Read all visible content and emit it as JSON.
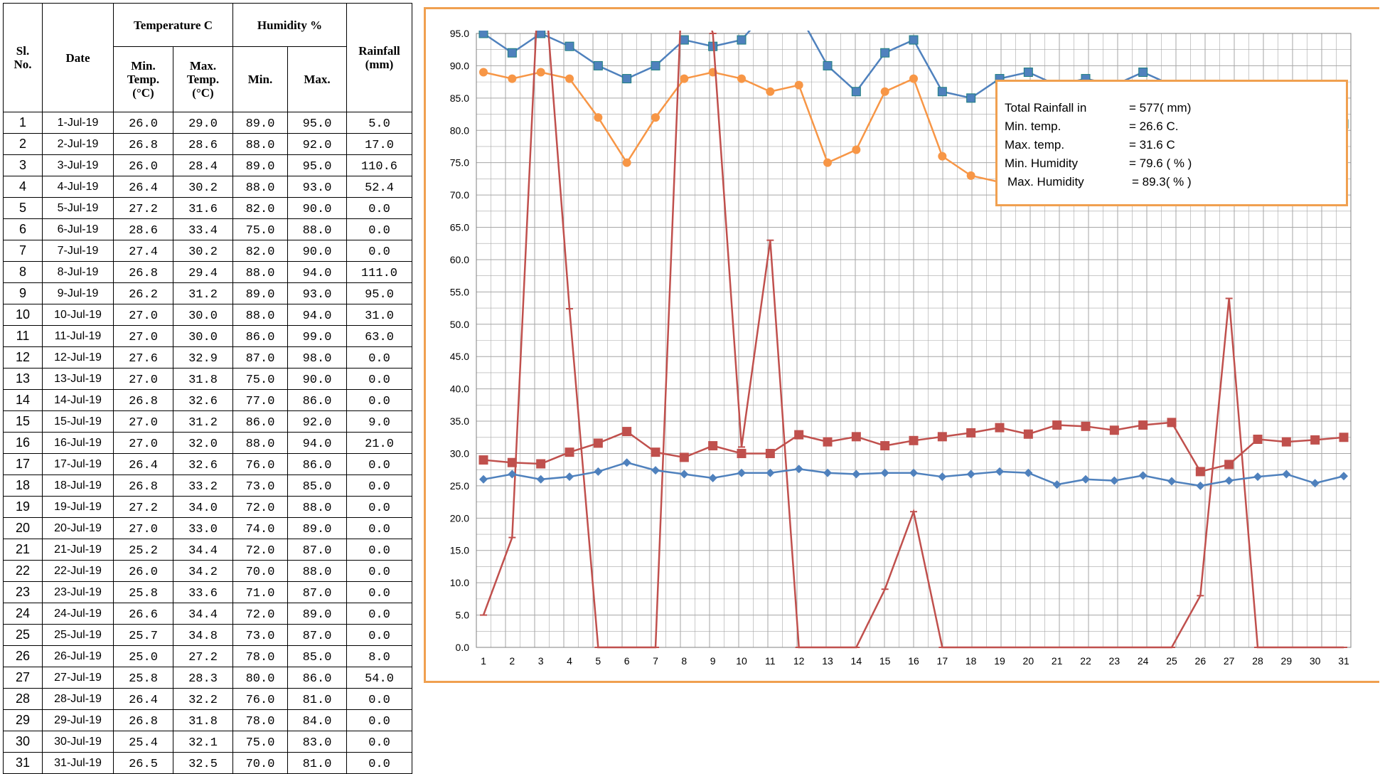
{
  "table": {
    "col_sl": "Sl.\nNo.",
    "col_date": "Date",
    "col_temperature": "Temperature C",
    "col_humidity": "Humidity %",
    "col_rainfall": "Rainfall\n(mm)",
    "col_min_temp": "Min.\nTemp.\n(°C)",
    "col_max_temp": "Max.\nTemp.\n(°C)",
    "col_min_hum": "Min.",
    "col_max_hum": "Max.",
    "rows": [
      {
        "sl": "1",
        "date": "1-Jul-19",
        "min_temp": "26.0",
        "max_temp": "29.0",
        "min_hum": "89.0",
        "max_hum": "95.0",
        "rain": "5.0"
      },
      {
        "sl": "2",
        "date": "2-Jul-19",
        "min_temp": "26.8",
        "max_temp": "28.6",
        "min_hum": "88.0",
        "max_hum": "92.0",
        "rain": "17.0"
      },
      {
        "sl": "3",
        "date": "3-Jul-19",
        "min_temp": "26.0",
        "max_temp": "28.4",
        "min_hum": "89.0",
        "max_hum": "95.0",
        "rain": "110.6"
      },
      {
        "sl": "4",
        "date": "4-Jul-19",
        "min_temp": "26.4",
        "max_temp": "30.2",
        "min_hum": "88.0",
        "max_hum": "93.0",
        "rain": "52.4"
      },
      {
        "sl": "5",
        "date": "5-Jul-19",
        "min_temp": "27.2",
        "max_temp": "31.6",
        "min_hum": "82.0",
        "max_hum": "90.0",
        "rain": "0.0"
      },
      {
        "sl": "6",
        "date": "6-Jul-19",
        "min_temp": "28.6",
        "max_temp": "33.4",
        "min_hum": "75.0",
        "max_hum": "88.0",
        "rain": "0.0"
      },
      {
        "sl": "7",
        "date": "7-Jul-19",
        "min_temp": "27.4",
        "max_temp": "30.2",
        "min_hum": "82.0",
        "max_hum": "90.0",
        "rain": "0.0"
      },
      {
        "sl": "8",
        "date": "8-Jul-19",
        "min_temp": "26.8",
        "max_temp": "29.4",
        "min_hum": "88.0",
        "max_hum": "94.0",
        "rain": "111.0"
      },
      {
        "sl": "9",
        "date": "9-Jul-19",
        "min_temp": "26.2",
        "max_temp": "31.2",
        "min_hum": "89.0",
        "max_hum": "93.0",
        "rain": "95.0"
      },
      {
        "sl": "10",
        "date": "10-Jul-19",
        "min_temp": "27.0",
        "max_temp": "30.0",
        "min_hum": "88.0",
        "max_hum": "94.0",
        "rain": "31.0"
      },
      {
        "sl": "11",
        "date": "11-Jul-19",
        "min_temp": "27.0",
        "max_temp": "30.0",
        "min_hum": "86.0",
        "max_hum": "99.0",
        "rain": "63.0"
      },
      {
        "sl": "12",
        "date": "12-Jul-19",
        "min_temp": "27.6",
        "max_temp": "32.9",
        "min_hum": "87.0",
        "max_hum": "98.0",
        "rain": "0.0"
      },
      {
        "sl": "13",
        "date": "13-Jul-19",
        "min_temp": "27.0",
        "max_temp": "31.8",
        "min_hum": "75.0",
        "max_hum": "90.0",
        "rain": "0.0"
      },
      {
        "sl": "14",
        "date": "14-Jul-19",
        "min_temp": "26.8",
        "max_temp": "32.6",
        "min_hum": "77.0",
        "max_hum": "86.0",
        "rain": "0.0"
      },
      {
        "sl": "15",
        "date": "15-Jul-19",
        "min_temp": "27.0",
        "max_temp": "31.2",
        "min_hum": "86.0",
        "max_hum": "92.0",
        "rain": "9.0"
      },
      {
        "sl": "16",
        "date": "16-Jul-19",
        "min_temp": "27.0",
        "max_temp": "32.0",
        "min_hum": "88.0",
        "max_hum": "94.0",
        "rain": "21.0"
      },
      {
        "sl": "17",
        "date": "17-Jul-19",
        "min_temp": "26.4",
        "max_temp": "32.6",
        "min_hum": "76.0",
        "max_hum": "86.0",
        "rain": "0.0"
      },
      {
        "sl": "18",
        "date": "18-Jul-19",
        "min_temp": "26.8",
        "max_temp": "33.2",
        "min_hum": "73.0",
        "max_hum": "85.0",
        "rain": "0.0"
      },
      {
        "sl": "19",
        "date": "19-Jul-19",
        "min_temp": "27.2",
        "max_temp": "34.0",
        "min_hum": "72.0",
        "max_hum": "88.0",
        "rain": "0.0"
      },
      {
        "sl": "20",
        "date": "20-Jul-19",
        "min_temp": "27.0",
        "max_temp": "33.0",
        "min_hum": "74.0",
        "max_hum": "89.0",
        "rain": "0.0"
      },
      {
        "sl": "21",
        "date": "21-Jul-19",
        "min_temp": "25.2",
        "max_temp": "34.4",
        "min_hum": "72.0",
        "max_hum": "87.0",
        "rain": "0.0"
      },
      {
        "sl": "22",
        "date": "22-Jul-19",
        "min_temp": "26.0",
        "max_temp": "34.2",
        "min_hum": "70.0",
        "max_hum": "88.0",
        "rain": "0.0"
      },
      {
        "sl": "23",
        "date": "23-Jul-19",
        "min_temp": "25.8",
        "max_temp": "33.6",
        "min_hum": "71.0",
        "max_hum": "87.0",
        "rain": "0.0"
      },
      {
        "sl": "24",
        "date": "24-Jul-19",
        "min_temp": "26.6",
        "max_temp": "34.4",
        "min_hum": "72.0",
        "max_hum": "89.0",
        "rain": "0.0"
      },
      {
        "sl": "25",
        "date": "25-Jul-19",
        "min_temp": "25.7",
        "max_temp": "34.8",
        "min_hum": "73.0",
        "max_hum": "87.0",
        "rain": "0.0"
      },
      {
        "sl": "26",
        "date": "26-Jul-19",
        "min_temp": "25.0",
        "max_temp": "27.2",
        "min_hum": "78.0",
        "max_hum": "85.0",
        "rain": "8.0"
      },
      {
        "sl": "27",
        "date": "27-Jul-19",
        "min_temp": "25.8",
        "max_temp": "28.3",
        "min_hum": "80.0",
        "max_hum": "86.0",
        "rain": "54.0"
      },
      {
        "sl": "28",
        "date": "28-Jul-19",
        "min_temp": "26.4",
        "max_temp": "32.2",
        "min_hum": "76.0",
        "max_hum": "81.0",
        "rain": "0.0"
      },
      {
        "sl": "29",
        "date": "29-Jul-19",
        "min_temp": "26.8",
        "max_temp": "31.8",
        "min_hum": "78.0",
        "max_hum": "84.0",
        "rain": "0.0"
      },
      {
        "sl": "30",
        "date": "30-Jul-19",
        "min_temp": "25.4",
        "max_temp": "32.1",
        "min_hum": "75.0",
        "max_hum": "83.0",
        "rain": "0.0"
      },
      {
        "sl": "31",
        "date": "31-Jul-19",
        "min_temp": "26.5",
        "max_temp": "32.5",
        "min_hum": "70.0",
        "max_hum": "81.0",
        "rain": "0.0"
      }
    ]
  },
  "summary": {
    "rainfall_label": "Total Rainfall in",
    "rainfall_value": "=   577( mm)",
    "min_temp_label": "Min. temp.",
    "min_temp_value": "= 26.6 C.",
    "max_temp_label": "Max. temp.",
    "max_temp_value": "= 31.6  C",
    "min_hum_label": "Min. Humidity",
    "min_hum_value": "= 79.6  ( % )",
    "max_hum_label": "Max. Humidity",
    "max_hum_value": "=  89.3( % )"
  },
  "colors": {
    "max_humidity": "#4f81bd",
    "min_humidity": "#f79646",
    "rainfall": "#c0504d",
    "max_temp": "#c0504d",
    "min_temp": "#4f81bd",
    "frame": "#f0a050",
    "grid": "#a6a6a6"
  },
  "chart_data": {
    "type": "line",
    "x": [
      1,
      2,
      3,
      4,
      5,
      6,
      7,
      8,
      9,
      10,
      11,
      12,
      13,
      14,
      15,
      16,
      17,
      18,
      19,
      20,
      21,
      22,
      23,
      24,
      25,
      26,
      27,
      28,
      29,
      30,
      31
    ],
    "ylim": [
      0,
      95
    ],
    "y_ticks": [
      "0.0",
      "5.0",
      "10.0",
      "15.0",
      "20.0",
      "25.0",
      "30.0",
      "35.0",
      "40.0",
      "45.0",
      "50.0",
      "55.0",
      "60.0",
      "65.0",
      "70.0",
      "75.0",
      "80.0",
      "85.0",
      "90.0",
      "95.0"
    ],
    "x_ticks": [
      "1",
      "2",
      "3",
      "4",
      "5",
      "6",
      "7",
      "8",
      "9",
      "10",
      "11",
      "12",
      "13",
      "14",
      "15",
      "16",
      "17",
      "18",
      "19",
      "20",
      "21",
      "22",
      "23",
      "24",
      "25",
      "26",
      "27",
      "28",
      "29",
      "30",
      "31"
    ],
    "grid": true,
    "series": [
      {
        "key": "max_humidity",
        "marker": "square",
        "values": [
          95,
          92,
          95,
          93,
          90,
          88,
          90,
          94,
          93,
          94,
          99,
          98,
          90,
          86,
          92,
          94,
          86,
          85,
          88,
          89,
          87,
          88,
          87,
          89,
          87,
          85,
          86,
          81,
          84,
          83,
          81
        ]
      },
      {
        "key": "min_humidity",
        "marker": "circle",
        "values": [
          89,
          88,
          89,
          88,
          82,
          75,
          82,
          88,
          89,
          88,
          86,
          87,
          75,
          77,
          86,
          88,
          76,
          73,
          72,
          74,
          72,
          70,
          71,
          72,
          73,
          78,
          80,
          76,
          78,
          75,
          70
        ]
      },
      {
        "key": "rainfall",
        "marker": "dash",
        "values": [
          5,
          17,
          110.6,
          52.4,
          0,
          0,
          0,
          111,
          95,
          31,
          63,
          0,
          0,
          0,
          9,
          21,
          0,
          0,
          0,
          0,
          0,
          0,
          0,
          0,
          0,
          8,
          54,
          0,
          0,
          0,
          0
        ]
      },
      {
        "key": "max_temp",
        "marker": "square",
        "values": [
          29,
          28.6,
          28.4,
          30.2,
          31.6,
          33.4,
          30.2,
          29.4,
          31.2,
          30,
          30,
          32.9,
          31.8,
          32.6,
          31.2,
          32,
          32.6,
          33.2,
          34,
          33,
          34.4,
          34.2,
          33.6,
          34.4,
          34.8,
          27.2,
          28.3,
          32.2,
          31.8,
          32.1,
          32.5
        ]
      },
      {
        "key": "min_temp",
        "marker": "diamond",
        "values": [
          26,
          26.8,
          26,
          26.4,
          27.2,
          28.6,
          27.4,
          26.8,
          26.2,
          27,
          27,
          27.6,
          27,
          26.8,
          27,
          27,
          26.4,
          26.8,
          27.2,
          27,
          25.2,
          26,
          25.8,
          26.6,
          25.7,
          25,
          25.8,
          26.4,
          26.8,
          25.4,
          26.5
        ]
      }
    ]
  }
}
